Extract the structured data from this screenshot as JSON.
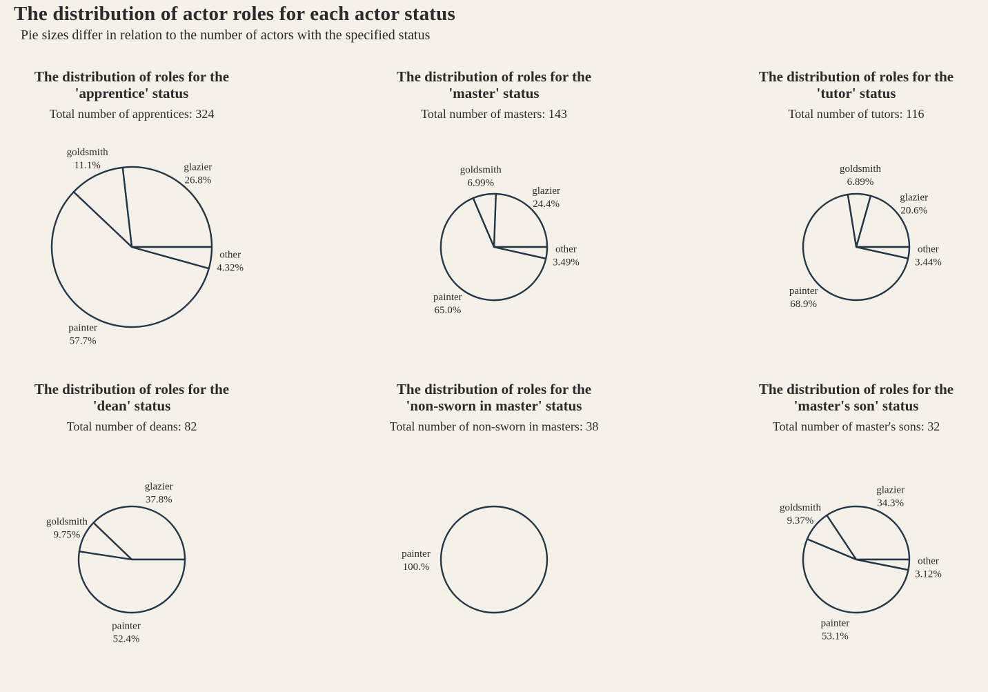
{
  "title": "The distribution of actor roles for each actor status",
  "subtitle": "Pie sizes differ in relation to the number of actors with the specified status",
  "colors": {
    "background": "#f5f1e8",
    "stroke": "#243746",
    "text": "#2b2b2b"
  },
  "chart_data": [
    {
      "type": "pie",
      "title_lines": [
        "The distribution of roles for the",
        "'apprentice' status"
      ],
      "total_label": "Total number of apprentices: 324",
      "total": 324,
      "slices": [
        {
          "label": "glazier",
          "pct_label": "26.8%",
          "value": 26.8
        },
        {
          "label": "goldsmith",
          "pct_label": "11.1%",
          "value": 11.1
        },
        {
          "label": "painter",
          "pct_label": "57.7%",
          "value": 57.7
        },
        {
          "label": "other",
          "pct_label": "4.32%",
          "value": 4.32
        }
      ]
    },
    {
      "type": "pie",
      "title_lines": [
        "The distribution of roles for the",
        "'master' status"
      ],
      "total_label": "Total number of masters: 143",
      "total": 143,
      "slices": [
        {
          "label": "glazier",
          "pct_label": "24.4%",
          "value": 24.4
        },
        {
          "label": "goldsmith",
          "pct_label": "6.99%",
          "value": 6.99
        },
        {
          "label": "painter",
          "pct_label": "65.0%",
          "value": 65.0
        },
        {
          "label": "other",
          "pct_label": "3.49%",
          "value": 3.49
        }
      ]
    },
    {
      "type": "pie",
      "title_lines": [
        "The distribution of roles for the",
        "'tutor' status"
      ],
      "total_label": "Total number of tutors: 116",
      "total": 116,
      "slices": [
        {
          "label": "glazier",
          "pct_label": "20.6%",
          "value": 20.6
        },
        {
          "label": "goldsmith",
          "pct_label": "6.89%",
          "value": 6.89
        },
        {
          "label": "painter",
          "pct_label": "68.9%",
          "value": 68.9
        },
        {
          "label": "other",
          "pct_label": "3.44%",
          "value": 3.44
        }
      ]
    },
    {
      "type": "pie",
      "title_lines": [
        "The distribution of roles for the",
        "'dean' status"
      ],
      "total_label": "Total number of deans: 82",
      "total": 82,
      "slices": [
        {
          "label": "glazier",
          "pct_label": "37.8%",
          "value": 37.8
        },
        {
          "label": "goldsmith",
          "pct_label": "9.75%",
          "value": 9.75
        },
        {
          "label": "painter",
          "pct_label": "52.4%",
          "value": 52.4
        }
      ]
    },
    {
      "type": "pie",
      "title_lines": [
        "The distribution of roles for the",
        "'non-sworn in master' status"
      ],
      "total_label": "Total number of non-sworn in masters: 38",
      "total": 38,
      "slices": [
        {
          "label": "painter",
          "pct_label": "100.%",
          "value": 100
        }
      ]
    },
    {
      "type": "pie",
      "title_lines": [
        "The distribution of roles for the",
        "'master's son' status"
      ],
      "total_label": "Total number of master's sons: 32",
      "total": 32,
      "slices": [
        {
          "label": "glazier",
          "pct_label": "34.3%",
          "value": 34.3
        },
        {
          "label": "goldsmith",
          "pct_label": "9.37%",
          "value": 9.37
        },
        {
          "label": "painter",
          "pct_label": "53.1%",
          "value": 53.1
        },
        {
          "label": "other",
          "pct_label": "3.12%",
          "value": 3.12
        }
      ]
    }
  ]
}
